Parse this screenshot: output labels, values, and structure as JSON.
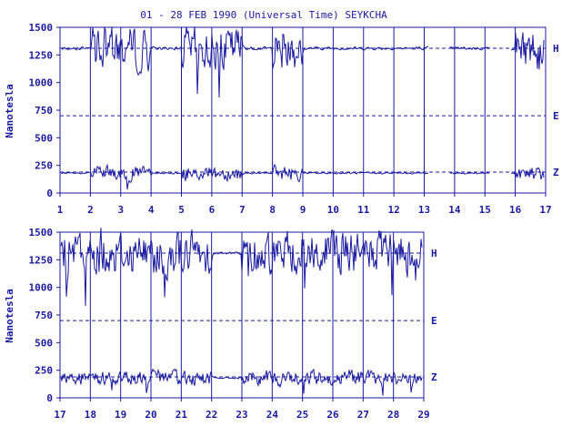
{
  "chart_data": {
    "title": "01 - 28 FEB 1990 (Universal Time) SEYKCHA",
    "type": "line",
    "ylabel": "Nanotesla",
    "colors": {
      "ink": "#1a1aa0",
      "background": "#ffffff"
    },
    "grid": "vertical day lines and dashed component reference lines",
    "panels": [
      {
        "days": [
          "1",
          "2",
          "3",
          "4",
          "5",
          "6",
          "7",
          "8",
          "9",
          "10",
          "11",
          "12",
          "13",
          "14",
          "15",
          "16",
          "17"
        ],
        "yticks": [
          "1500",
          "1250",
          "1000",
          "750",
          "500",
          "250",
          "0"
        ],
        "ylim": [
          0,
          1500
        ],
        "reference_lines": [
          {
            "component": "H",
            "value": 1310
          },
          {
            "component": "E",
            "value": 700
          },
          {
            "component": "Z",
            "value": 190
          }
        ],
        "series": [
          {
            "name": "H",
            "baseline": 1310,
            "disturbed_days": [
              2,
              3,
              5,
              6,
              8,
              16,
              17
            ],
            "gap_days": [
              13,
              15
            ]
          },
          {
            "name": "E",
            "baseline": 700
          },
          {
            "name": "Z",
            "baseline": 180,
            "disturbed_days": [
              2,
              3,
              5,
              6,
              8,
              16,
              17
            ],
            "gap_days": [
              13,
              15
            ]
          }
        ]
      },
      {
        "days": [
          "17",
          "18",
          "19",
          "20",
          "21",
          "22",
          "23",
          "24",
          "25",
          "26",
          "27",
          "28",
          "29"
        ],
        "yticks": [
          "1500",
          "1250",
          "1000",
          "750",
          "500",
          "250",
          "0"
        ],
        "ylim": [
          0,
          1500
        ],
        "reference_lines": [
          {
            "component": "H",
            "value": 1310
          },
          {
            "component": "E",
            "value": 700
          },
          {
            "component": "Z",
            "value": 190
          }
        ],
        "series": [
          {
            "name": "H",
            "baseline": 1310,
            "disturbed_days": [
              17,
              18,
              19,
              20,
              21,
              23,
              24,
              25,
              26,
              27,
              28
            ],
            "gap_days": []
          },
          {
            "name": "E",
            "baseline": 700
          },
          {
            "name": "Z",
            "baseline": 180,
            "disturbed_days": [
              17,
              18,
              19,
              20,
              21,
              23,
              24,
              25,
              26,
              27,
              28
            ],
            "gap_days": []
          }
        ]
      }
    ]
  }
}
